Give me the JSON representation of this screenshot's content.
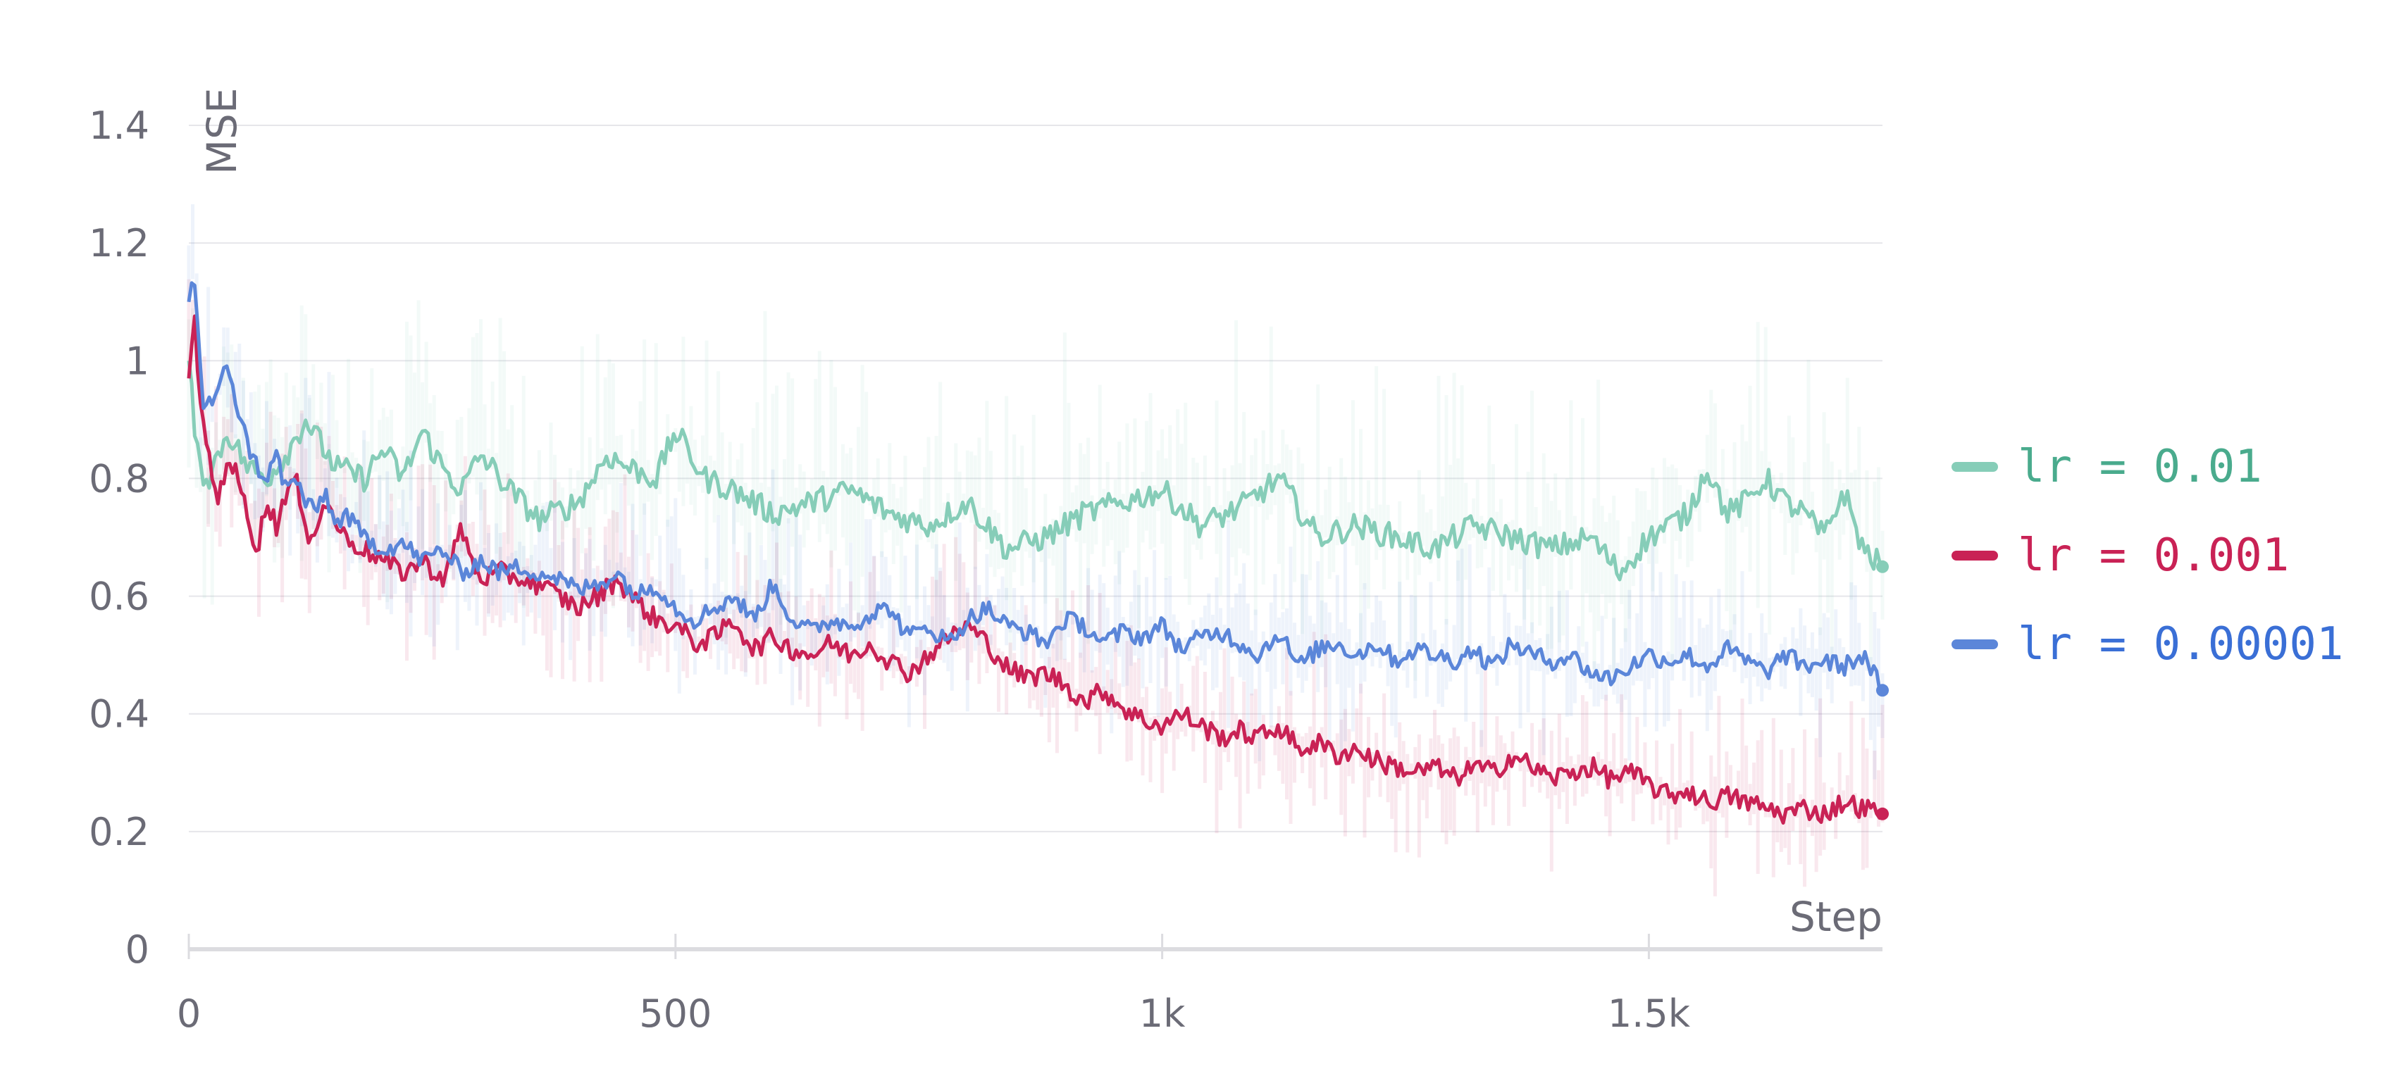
{
  "chart_data": {
    "type": "line",
    "title": "",
    "xlabel": "Step",
    "ylabel": "MSE",
    "xlim": [
      0,
      1740
    ],
    "ylim": [
      0,
      1.4
    ],
    "x_ticks": [
      0,
      500,
      1000,
      1500
    ],
    "x_tick_labels": [
      "0",
      "500",
      "1k",
      "1.5k"
    ],
    "y_ticks": [
      0,
      0.2,
      0.4,
      0.6,
      0.8,
      1.0,
      1.2,
      1.4
    ],
    "y_tick_labels": [
      "0",
      "0.2",
      "0.4",
      "0.6",
      "0.8",
      "1",
      "1.2",
      "1.4"
    ],
    "grid": true,
    "legend_position": "right",
    "series": [
      {
        "name": "lr = 0.01",
        "color": "#86cdb8",
        "label_color": "#4aab8d",
        "x": [
          0,
          10,
          20,
          40,
          60,
          80,
          100,
          120,
          150,
          180,
          200,
          220,
          240,
          260,
          280,
          300,
          330,
          360,
          400,
          430,
          450,
          480,
          500,
          530,
          560,
          600,
          640,
          680,
          720,
          760,
          800,
          840,
          880,
          920,
          960,
          1000,
          1040,
          1080,
          1120,
          1160,
          1200,
          1240,
          1280,
          1320,
          1360,
          1400,
          1440,
          1470,
          1500,
          1540,
          1560,
          1580,
          1600,
          1620,
          1640,
          1660,
          1680,
          1700,
          1720,
          1740
        ],
        "y": [
          1.0,
          0.82,
          0.8,
          0.88,
          0.82,
          0.8,
          0.84,
          0.9,
          0.82,
          0.8,
          0.85,
          0.8,
          0.88,
          0.82,
          0.78,
          0.84,
          0.78,
          0.73,
          0.76,
          0.84,
          0.82,
          0.8,
          0.88,
          0.8,
          0.78,
          0.74,
          0.76,
          0.78,
          0.74,
          0.72,
          0.76,
          0.68,
          0.7,
          0.74,
          0.76,
          0.78,
          0.72,
          0.75,
          0.8,
          0.7,
          0.72,
          0.7,
          0.68,
          0.72,
          0.7,
          0.68,
          0.7,
          0.64,
          0.7,
          0.74,
          0.82,
          0.74,
          0.76,
          0.8,
          0.76,
          0.74,
          0.7,
          0.78,
          0.68,
          0.65
        ]
      },
      {
        "name": "lr = 0.001",
        "color": "#c92255",
        "label_color": "#c92255",
        "x": [
          0,
          5,
          15,
          30,
          40,
          50,
          60,
          70,
          80,
          90,
          100,
          110,
          120,
          130,
          140,
          150,
          160,
          180,
          200,
          220,
          240,
          260,
          270,
          280,
          290,
          300,
          320,
          340,
          360,
          380,
          400,
          420,
          440,
          460,
          480,
          500,
          520,
          540,
          560,
          580,
          600,
          620,
          640,
          660,
          680,
          700,
          720,
          740,
          760,
          780,
          800,
          820,
          840,
          860,
          880,
          900,
          920,
          940,
          960,
          980,
          1000,
          1020,
          1040,
          1060,
          1080,
          1100,
          1120,
          1140,
          1160,
          1180,
          1200,
          1220,
          1240,
          1260,
          1280,
          1300,
          1320,
          1340,
          1360,
          1380,
          1400,
          1420,
          1440,
          1460,
          1480,
          1500,
          1520,
          1540,
          1560,
          1580,
          1600,
          1620,
          1640,
          1660,
          1680,
          1700,
          1720,
          1740
        ],
        "y": [
          0.97,
          1.08,
          0.88,
          0.76,
          0.84,
          0.8,
          0.74,
          0.68,
          0.76,
          0.72,
          0.78,
          0.8,
          0.7,
          0.72,
          0.76,
          0.73,
          0.7,
          0.68,
          0.66,
          0.64,
          0.66,
          0.63,
          0.66,
          0.72,
          0.66,
          0.63,
          0.64,
          0.63,
          0.62,
          0.6,
          0.58,
          0.6,
          0.63,
          0.59,
          0.56,
          0.55,
          0.52,
          0.53,
          0.56,
          0.51,
          0.53,
          0.51,
          0.5,
          0.52,
          0.5,
          0.52,
          0.49,
          0.47,
          0.5,
          0.53,
          0.55,
          0.52,
          0.48,
          0.46,
          0.47,
          0.45,
          0.42,
          0.44,
          0.41,
          0.39,
          0.38,
          0.4,
          0.38,
          0.36,
          0.37,
          0.36,
          0.38,
          0.34,
          0.35,
          0.33,
          0.34,
          0.32,
          0.31,
          0.3,
          0.31,
          0.29,
          0.31,
          0.3,
          0.33,
          0.31,
          0.29,
          0.3,
          0.31,
          0.29,
          0.3,
          0.28,
          0.26,
          0.27,
          0.25,
          0.26,
          0.25,
          0.24,
          0.23,
          0.24,
          0.23,
          0.25,
          0.24,
          0.23
        ]
      },
      {
        "name": "lr = 0.00001",
        "color": "#5b86d9",
        "label_color": "#3a6fd6",
        "x": [
          0,
          5,
          15,
          30,
          40,
          50,
          60,
          70,
          80,
          90,
          100,
          110,
          120,
          130,
          140,
          150,
          160,
          180,
          200,
          220,
          240,
          260,
          280,
          300,
          320,
          340,
          360,
          380,
          400,
          420,
          440,
          460,
          480,
          500,
          520,
          540,
          560,
          580,
          600,
          620,
          640,
          660,
          680,
          700,
          720,
          740,
          760,
          780,
          800,
          820,
          840,
          860,
          880,
          900,
          920,
          940,
          960,
          980,
          1000,
          1020,
          1040,
          1060,
          1080,
          1100,
          1120,
          1140,
          1160,
          1180,
          1200,
          1220,
          1240,
          1260,
          1280,
          1300,
          1320,
          1340,
          1360,
          1380,
          1400,
          1420,
          1440,
          1460,
          1480,
          1500,
          1520,
          1540,
          1560,
          1580,
          1600,
          1620,
          1640,
          1660,
          1680,
          1700,
          1720,
          1740
        ],
        "y": [
          1.1,
          1.16,
          0.92,
          0.94,
          1.0,
          0.92,
          0.86,
          0.82,
          0.8,
          0.84,
          0.78,
          0.8,
          0.76,
          0.74,
          0.78,
          0.72,
          0.74,
          0.7,
          0.68,
          0.69,
          0.66,
          0.68,
          0.64,
          0.66,
          0.64,
          0.65,
          0.64,
          0.63,
          0.61,
          0.62,
          0.64,
          0.6,
          0.62,
          0.58,
          0.56,
          0.58,
          0.6,
          0.56,
          0.62,
          0.56,
          0.54,
          0.56,
          0.55,
          0.57,
          0.58,
          0.53,
          0.55,
          0.52,
          0.56,
          0.58,
          0.55,
          0.54,
          0.52,
          0.56,
          0.55,
          0.52,
          0.54,
          0.53,
          0.55,
          0.51,
          0.53,
          0.54,
          0.52,
          0.5,
          0.54,
          0.48,
          0.51,
          0.52,
          0.5,
          0.52,
          0.49,
          0.51,
          0.5,
          0.49,
          0.51,
          0.48,
          0.52,
          0.5,
          0.49,
          0.5,
          0.47,
          0.46,
          0.48,
          0.5,
          0.49,
          0.5,
          0.48,
          0.51,
          0.49,
          0.47,
          0.5,
          0.48,
          0.49,
          0.48,
          0.5,
          0.44
        ]
      }
    ]
  }
}
